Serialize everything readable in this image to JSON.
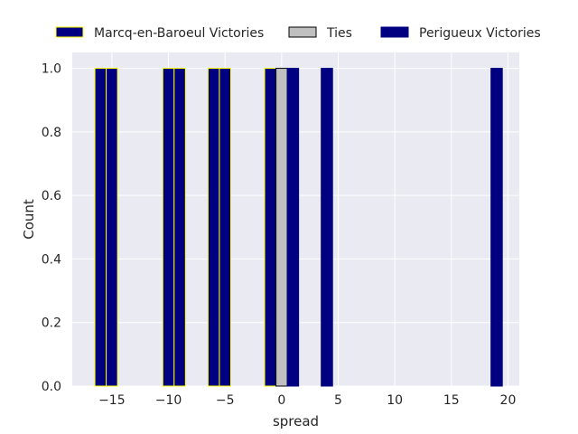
{
  "chart_data": {
    "type": "bar",
    "xlabel": "spread",
    "ylabel": "Count",
    "xlim": [
      -18.5,
      21.0
    ],
    "ylim": [
      0,
      1.05
    ],
    "xticks": [
      -15,
      -10,
      -5,
      0,
      5,
      10,
      15,
      20
    ],
    "xtick_labels": [
      "−15",
      "−10",
      "−5",
      "0",
      "5",
      "10",
      "15",
      "20"
    ],
    "yticks": [
      0.0,
      0.2,
      0.4,
      0.6,
      0.8,
      1.0
    ],
    "ytick_labels": [
      "0.0",
      "0.2",
      "0.4",
      "0.6",
      "0.8",
      "1.0"
    ],
    "grid": true,
    "legend_position": "top",
    "bar_width": 1.0,
    "series": [
      {
        "name": "Marcq-en-Baroeul Victories",
        "color": "#000080",
        "edge_color": "#ffff00",
        "bars": [
          {
            "x": -16,
            "value": 1
          },
          {
            "x": -15,
            "value": 1
          },
          {
            "x": -10,
            "value": 1
          },
          {
            "x": -9,
            "value": 1
          },
          {
            "x": -6,
            "value": 1
          },
          {
            "x": -5,
            "value": 1
          },
          {
            "x": -1,
            "value": 1
          }
        ]
      },
      {
        "name": "Ties",
        "color": "#c0c0c0",
        "edge_color": "#000000",
        "bars": [
          {
            "x": 0,
            "value": 1
          }
        ]
      },
      {
        "name": "Perigueux Victories",
        "color": "#000080",
        "edge_color": "#000080",
        "bars": [
          {
            "x": 1,
            "value": 1
          },
          {
            "x": 4,
            "value": 1
          },
          {
            "x": 19,
            "value": 1
          }
        ]
      }
    ]
  }
}
